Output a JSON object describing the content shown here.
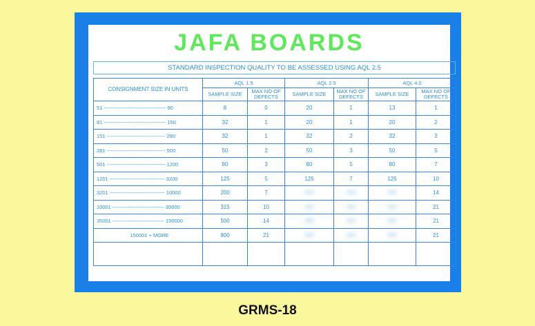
{
  "title": "STANDARD INSPECTION QUALITY TO BE ASSESSED USING AQL 2.5",
  "headers": {
    "consignment": "CONSIGNMENT SIZE IN UNITS",
    "groups": [
      "AQL 1.5",
      "AQL 2.5",
      "AQL 4.0"
    ],
    "sample": "SAMPLE SIZE",
    "defects": "MAX NO OF DEFECTS"
  },
  "rows": [
    [
      "51 ------------------------------------ 90",
      "8",
      "0",
      "20",
      "1",
      "13",
      "1"
    ],
    [
      "91 ------------------------------------ 150",
      "32",
      "1",
      "20",
      "1",
      "20",
      "2"
    ],
    [
      "151 ---------------------------------- 280",
      "32",
      "1",
      "32",
      "2",
      "32",
      "3"
    ],
    [
      "281 ---------------------------------- 500",
      "50",
      "2",
      "50",
      "3",
      "50",
      "5"
    ],
    [
      "501 ---------------------------------- 1200",
      "80",
      "3",
      "80",
      "5",
      "80",
      "7"
    ],
    [
      "1201 -------------------------------- 3200",
      "125",
      "5",
      "125",
      "7",
      "125",
      "10"
    ],
    [
      "3201 -------------------------------- 10000",
      "200",
      "7",
      "",
      "",
      "",
      "14"
    ],
    [
      "10001 ------------------------------ 35000",
      "315",
      "10",
      "",
      "",
      "",
      "21"
    ],
    [
      "35001 ------------------------------ 150000",
      "500",
      "14",
      "",
      "",
      "",
      "21"
    ],
    [
      "150001 + MORE",
      "800",
      "21",
      "",
      "",
      "",
      "21"
    ]
  ],
  "watermark": "JAFA BOARDS",
  "product_code": "GRMS-18",
  "colors": {
    "background": "#fbf79c",
    "frame": "#1a7fe6",
    "text": "#2a8fd6",
    "watermark": "#5ee85a"
  }
}
